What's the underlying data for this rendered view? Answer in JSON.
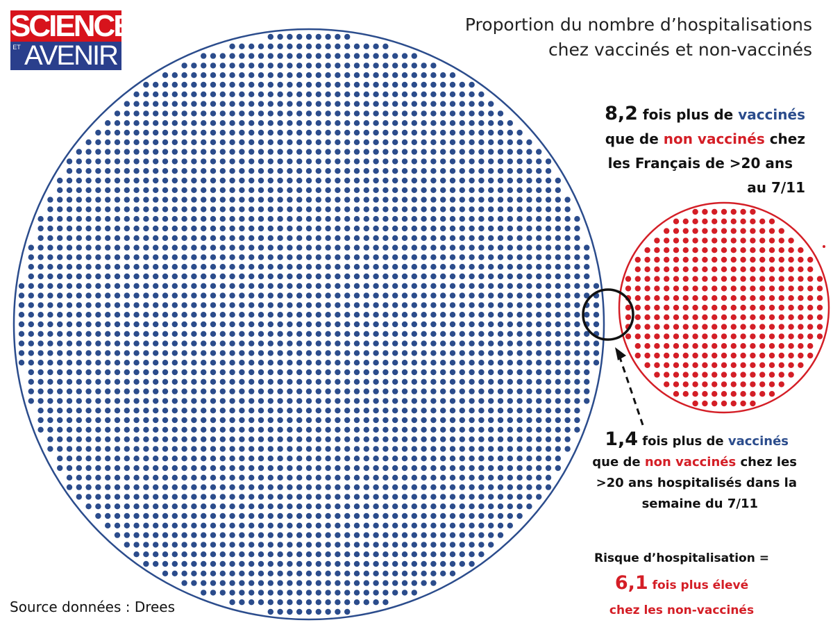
{
  "logo": {
    "top": "SCIENCES",
    "et": "ET",
    "bottom": "AVENIR",
    "top_color": "#d7131c",
    "bottom_color": "#2a3f8c"
  },
  "title": {
    "line1": "Proportion du nombre d’hospitalisations",
    "line2": "chez vaccinés et non-vaccinés"
  },
  "callout_population": {
    "value": "8,2",
    "text_a": " fois plus de ",
    "vaccinated": "vaccinés",
    "text_b": "que de ",
    "unvaccinated": "non vaccinés",
    "text_c": " chez",
    "line3": "les Français de >20 ans",
    "line4": "au 7/11"
  },
  "callout_hospital": {
    "value": "1,4",
    "text_a": " fois plus de ",
    "vaccinated": "vaccinés",
    "text_b": "que de ",
    "unvaccinated": "non vaccinés",
    "text_c": " chez les",
    "line3": ">20 ans hospitalisés dans la",
    "line4": "semaine du 7/11"
  },
  "risk": {
    "label": "Risque d’hospitalisation =",
    "value": "6,1",
    "text": " fois plus élevé",
    "line3": "chez les non-vaccinés"
  },
  "source": "Source données : Drees",
  "colors": {
    "vaccinated": "#2b4c8c",
    "unvaccinated": "#d41e26",
    "highlight": "#111111"
  },
  "circles": {
    "vaccinated_ratio_to_unvaccinated": 8.2,
    "hospitalized_ratio": 1.4
  }
}
